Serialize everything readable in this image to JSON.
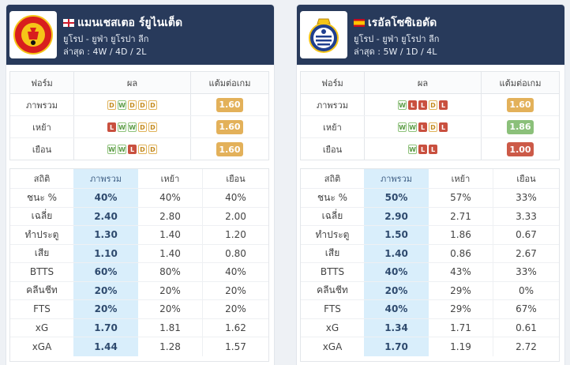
{
  "teams": [
    {
      "name": "แมนเชสเตอ ร์ยูไนเต็ด",
      "flag": "england",
      "league": "ยูโรป - ยูฟ่า ยูโรปา ลีก",
      "recent": "ล่าสุด : 4W / 4D / 2L",
      "form_headers": [
        "ฟอร์ม",
        "ผล",
        "แต้มต่อเกม"
      ],
      "form_rows": [
        {
          "label": "ภาพรวม",
          "results": [
            "D",
            "W",
            "D",
            "D",
            "D"
          ],
          "ppg": "1.60",
          "ppg_color": "#e3b15a"
        },
        {
          "label": "เหย้า",
          "results": [
            "L",
            "W",
            "W",
            "D",
            "D"
          ],
          "ppg": "1.60",
          "ppg_color": "#e3b15a"
        },
        {
          "label": "เยือน",
          "results": [
            "W",
            "W",
            "L",
            "D",
            "D"
          ],
          "ppg": "1.60",
          "ppg_color": "#e3b15a"
        }
      ],
      "stat_headers": [
        "สถิติ",
        "ภาพรวม",
        "เหย้า",
        "เยือน"
      ],
      "stat_rows": [
        {
          "label": "ชนะ %",
          "overall": "40%",
          "home": "40%",
          "away": "40%"
        },
        {
          "label": "เฉลี่ย",
          "overall": "2.40",
          "home": "2.80",
          "away": "2.00"
        },
        {
          "label": "ทำประตู",
          "overall": "1.30",
          "home": "1.40",
          "away": "1.20"
        },
        {
          "label": "เสีย",
          "overall": "1.10",
          "home": "1.40",
          "away": "0.80"
        },
        {
          "label": "BTTS",
          "overall": "60%",
          "home": "80%",
          "away": "40%"
        },
        {
          "label": "คลีนชีท",
          "overall": "20%",
          "home": "20%",
          "away": "20%"
        },
        {
          "label": "FTS",
          "overall": "20%",
          "home": "20%",
          "away": "20%"
        },
        {
          "label": "xG",
          "overall": "1.70",
          "home": "1.81",
          "away": "1.62"
        },
        {
          "label": "xGA",
          "overall": "1.44",
          "home": "1.28",
          "away": "1.57"
        }
      ]
    },
    {
      "name": "เรอัลโซซิเอดัด",
      "flag": "spain",
      "league": "ยูโรป - ยูฟ่า ยูโรปา ลีก",
      "recent": "ล่าสุด : 5W / 1D / 4L",
      "form_headers": [
        "ฟอร์ม",
        "ผล",
        "แต้มต่อเกม"
      ],
      "form_rows": [
        {
          "label": "ภาพรวม",
          "results": [
            "W",
            "L",
            "L",
            "D",
            "L"
          ],
          "ppg": "1.60",
          "ppg_color": "#e3b15a"
        },
        {
          "label": "เหย้า",
          "results": [
            "W",
            "W",
            "L",
            "D",
            "L"
          ],
          "ppg": "1.86",
          "ppg_color": "#8bc07a"
        },
        {
          "label": "เยือน",
          "results": [
            "W",
            "L",
            "L"
          ],
          "ppg": "1.00",
          "ppg_color": "#cc5a48"
        }
      ],
      "stat_headers": [
        "สถิติ",
        "ภาพรวม",
        "เหย้า",
        "เยือน"
      ],
      "stat_rows": [
        {
          "label": "ชนะ %",
          "overall": "50%",
          "home": "57%",
          "away": "33%"
        },
        {
          "label": "เฉลี่ย",
          "overall": "2.90",
          "home": "2.71",
          "away": "3.33"
        },
        {
          "label": "ทำประตู",
          "overall": "1.50",
          "home": "1.86",
          "away": "0.67"
        },
        {
          "label": "เสีย",
          "overall": "1.40",
          "home": "0.86",
          "away": "2.67"
        },
        {
          "label": "BTTS",
          "overall": "40%",
          "home": "43%",
          "away": "33%"
        },
        {
          "label": "คลีนชีท",
          "overall": "20%",
          "home": "29%",
          "away": "0%"
        },
        {
          "label": "FTS",
          "overall": "40%",
          "home": "29%",
          "away": "67%"
        },
        {
          "label": "xG",
          "overall": "1.34",
          "home": "1.71",
          "away": "0.61"
        },
        {
          "label": "xGA",
          "overall": "1.70",
          "home": "1.19",
          "away": "2.72"
        }
      ]
    }
  ]
}
